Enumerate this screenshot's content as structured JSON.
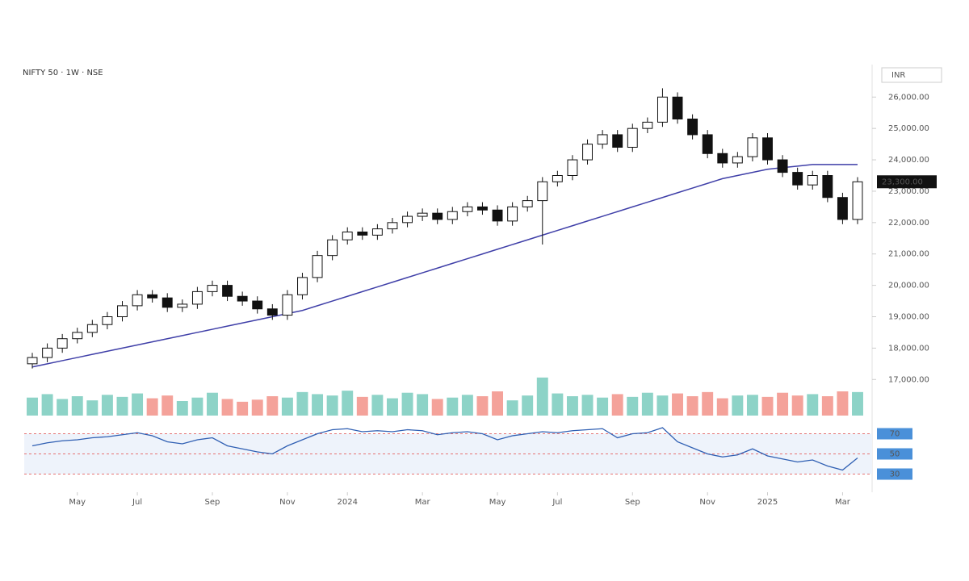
{
  "chart_data": {
    "type": "candlestick",
    "title": "NIFTY 50 · 1W · NSE",
    "currency": "INR",
    "open": [
      17500,
      17700,
      18000,
      18300,
      18500,
      18750,
      19000,
      19350,
      19700,
      19600,
      19300,
      19400,
      19800,
      20000,
      19650,
      19500,
      19250,
      19050,
      19700,
      20250,
      20950,
      21450,
      21700,
      21600,
      21800,
      22000,
      22200,
      22300,
      22100,
      22350,
      22500,
      22400,
      22050,
      22500,
      22700,
      23300,
      23500,
      24000,
      24500,
      24800,
      24400,
      25000,
      25200,
      26000,
      25300,
      24800,
      24200,
      23900,
      24100,
      24700,
      24000,
      23600,
      23200,
      23500,
      22800,
      22100
    ],
    "high": [
      17850,
      18150,
      18450,
      18650,
      18900,
      19150,
      19500,
      19850,
      19850,
      19750,
      19550,
      19950,
      20150,
      20150,
      19800,
      19650,
      19400,
      19850,
      20400,
      21100,
      21600,
      21850,
      21850,
      21950,
      22150,
      22350,
      22450,
      22450,
      22500,
      22650,
      22650,
      22550,
      22650,
      22850,
      23450,
      23650,
      24150,
      24650,
      24950,
      24950,
      25150,
      25350,
      26280,
      26150,
      25450,
      24950,
      24350,
      24250,
      24850,
      24850,
      24150,
      23750,
      23650,
      23650,
      22950,
      23450
    ],
    "low": [
      17350,
      17550,
      17850,
      18150,
      18350,
      18600,
      18850,
      19200,
      19450,
      19150,
      19150,
      19250,
      19650,
      19500,
      19350,
      19100,
      18900,
      18900,
      19550,
      20100,
      20800,
      21300,
      21450,
      21450,
      21650,
      21850,
      22050,
      21950,
      21950,
      22200,
      22250,
      21900,
      21900,
      22350,
      21300,
      23150,
      23350,
      23850,
      24350,
      24250,
      24250,
      24850,
      25050,
      25150,
      24650,
      24050,
      23750,
      23750,
      23950,
      23850,
      23450,
      23050,
      23050,
      22650,
      21950,
      21950
    ],
    "close": [
      17700,
      18000,
      18300,
      18500,
      18750,
      19000,
      19350,
      19700,
      19600,
      19300,
      19400,
      19800,
      20000,
      19650,
      19500,
      19250,
      19050,
      19700,
      20250,
      20950,
      21450,
      21700,
      21600,
      21800,
      22000,
      22200,
      22300,
      22100,
      22350,
      22500,
      22400,
      22050,
      22500,
      22700,
      23300,
      23500,
      24000,
      24500,
      24800,
      24400,
      25000,
      25200,
      26000,
      25300,
      24800,
      24200,
      23900,
      24100,
      24700,
      24000,
      23600,
      23200,
      23500,
      22800,
      22100,
      23300
    ],
    "moving_average": {
      "color": "#3f3fa8",
      "values": [
        17400,
        17500,
        17600,
        17700,
        17800,
        17900,
        18000,
        18100,
        18200,
        18300,
        18400,
        18500,
        18600,
        18700,
        18800,
        18900,
        19000,
        19100,
        19200,
        19350,
        19500,
        19650,
        19800,
        19950,
        20100,
        20250,
        20400,
        20550,
        20700,
        20850,
        21000,
        21150,
        21300,
        21450,
        21600,
        21750,
        21900,
        22050,
        22200,
        22350,
        22500,
        22650,
        22800,
        22950,
        23100,
        23250,
        23400,
        23500,
        23600,
        23700,
        23750,
        23800,
        23850,
        23850,
        23850,
        23850
      ]
    },
    "volume": [
      2.6,
      3.1,
      2.4,
      2.8,
      2.2,
      3.0,
      2.7,
      3.2,
      2.5,
      2.9,
      2.1,
      2.6,
      3.3,
      2.4,
      2.0,
      2.3,
      2.8,
      2.6,
      3.4,
      3.1,
      2.9,
      3.6,
      2.7,
      3.0,
      2.5,
      3.3,
      3.1,
      2.4,
      2.6,
      3.0,
      2.8,
      3.5,
      2.2,
      2.9,
      5.5,
      3.2,
      2.8,
      3.0,
      2.6,
      3.1,
      2.7,
      3.3,
      2.9,
      3.2,
      2.8,
      3.4,
      2.5,
      2.9,
      3.0,
      2.7,
      3.3,
      2.9,
      3.1,
      2.8,
      3.5,
      3.4
    ],
    "volume_ylim": [
      0,
      7
    ],
    "up_color": "#8dd3c7",
    "down_color": "#f4a29a",
    "rsi": [
      58,
      61,
      63,
      64,
      66,
      67,
      69,
      71,
      68,
      62,
      60,
      64,
      66,
      58,
      55,
      52,
      50,
      58,
      64,
      70,
      74,
      75,
      72,
      73,
      72,
      74,
      73,
      69,
      71,
      72,
      70,
      64,
      68,
      70,
      72,
      71,
      73,
      74,
      75,
      66,
      70,
      71,
      76,
      62,
      56,
      50,
      47,
      49,
      55,
      48,
      45,
      42,
      44,
      38,
      34,
      46
    ],
    "rsi_ylim": [
      20,
      80
    ],
    "rsi_yticks": [
      70,
      50,
      30
    ],
    "ylim": [
      15850,
      26650
    ],
    "yticks": [
      {
        "value": 26000,
        "label": "26,000.00"
      },
      {
        "value": 25000,
        "label": "25,000.00"
      },
      {
        "value": 24000,
        "label": "24,000.00"
      },
      {
        "value": 23000,
        "label": "23,000.00"
      },
      {
        "value": 22000,
        "label": "22,000.00"
      },
      {
        "value": 21000,
        "label": "21,000.00"
      },
      {
        "value": 20000,
        "label": "20,000.00"
      },
      {
        "value": 19000,
        "label": "19,000.00"
      },
      {
        "value": 18000,
        "label": "18,000.00"
      },
      {
        "value": 17000,
        "label": "17,000.00"
      }
    ],
    "last_price_label": "23,300.00",
    "xticks": [
      {
        "value": 3,
        "label": "May"
      },
      {
        "value": 7,
        "label": "Jul"
      },
      {
        "value": 12,
        "label": "Sep"
      },
      {
        "value": 17,
        "label": "Nov"
      },
      {
        "value": 21,
        "label": "2024"
      },
      {
        "value": 26,
        "label": "Mar"
      },
      {
        "value": 31,
        "label": "May"
      },
      {
        "value": 35,
        "label": "Jul"
      },
      {
        "value": 40,
        "label": "Sep"
      },
      {
        "value": 45,
        "label": "Nov"
      },
      {
        "value": 49,
        "label": "2025"
      },
      {
        "value": 54,
        "label": "Mar"
      }
    ]
  }
}
